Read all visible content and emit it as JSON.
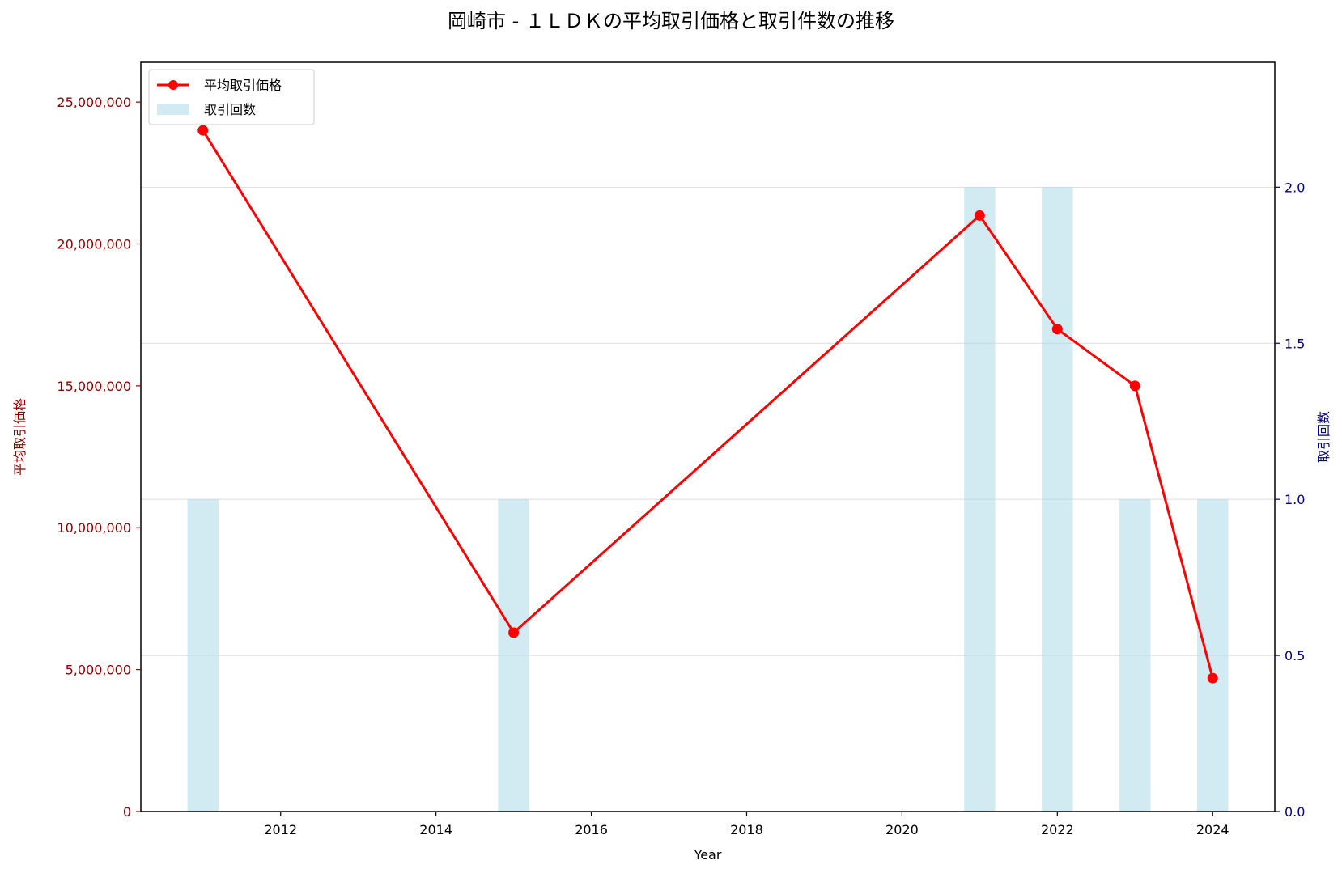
{
  "chart_data": {
    "type": "bar+line",
    "title": "岡崎市 - １ＬＤＫの平均取引価格と取引件数の推移",
    "xlabel": "Year",
    "ylabel_left": "平均取引価格",
    "ylabel_right": "取引回数",
    "x_ticks": [
      2012,
      2014,
      2016,
      2018,
      2020,
      2022,
      2024
    ],
    "x_range": [
      2010.2,
      2024.8
    ],
    "y_left_range": [
      0,
      26400000
    ],
    "y_left_ticks": [
      0,
      5000000,
      10000000,
      15000000,
      20000000,
      25000000
    ],
    "y_left_tick_labels": [
      "0",
      "5,000,000",
      "10,000,000",
      "15,000,000",
      "20,000,000",
      "25,000,000"
    ],
    "y_right_range": [
      0,
      2.4
    ],
    "y_right_ticks": [
      0.0,
      0.5,
      1.0,
      1.5,
      2.0
    ],
    "y_right_tick_labels": [
      "0.0",
      "0.5",
      "1.0",
      "1.5",
      "2.0"
    ],
    "grid": "horizontal (right axis)",
    "legend_position": "top-left",
    "series": [
      {
        "name": "平均取引価格",
        "kind": "line",
        "axis": "left",
        "color": "#ff0000",
        "x": [
          2011,
          2015,
          2021,
          2022,
          2023,
          2024
        ],
        "values": [
          24000000,
          6300000,
          21000000,
          17000000,
          15000000,
          4700000
        ]
      },
      {
        "name": "取引回数",
        "kind": "bar",
        "axis": "right",
        "color": "#add8e6",
        "x": [
          2011,
          2015,
          2021,
          2022,
          2023,
          2024
        ],
        "values": [
          1,
          1,
          2,
          2,
          1,
          1
        ]
      }
    ],
    "colors": {
      "left_axis": "#8b0000",
      "right_axis": "#00008b",
      "grid": "#dddddd"
    }
  }
}
